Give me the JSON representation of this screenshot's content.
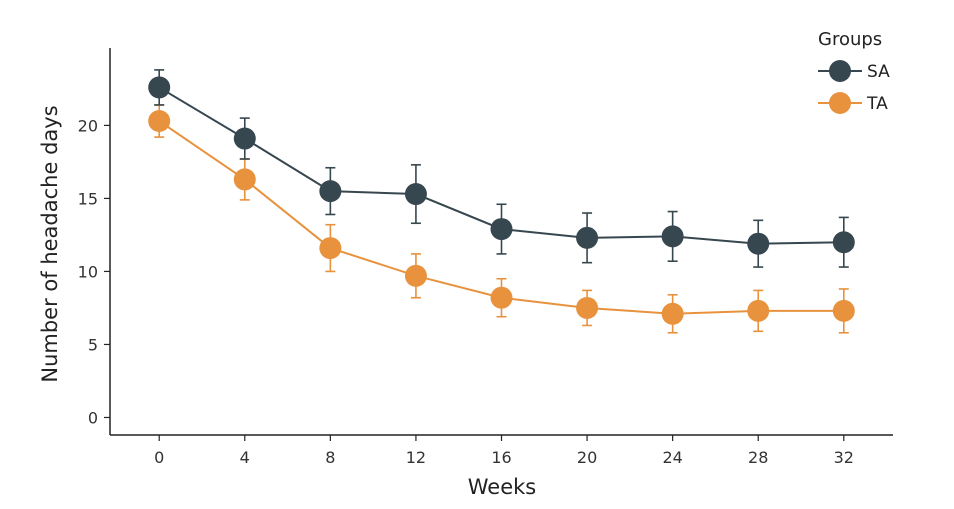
{
  "chart_data": {
    "type": "line",
    "xlabel": "Weeks",
    "ylabel": "Number of headache days",
    "x": [
      0,
      4,
      8,
      12,
      16,
      20,
      24,
      28,
      32
    ],
    "xlim": [
      -2.3,
      34.3
    ],
    "ylim": [
      -1.2,
      25.3
    ],
    "yticks": [
      0,
      5,
      10,
      15,
      20
    ],
    "grid": false,
    "legend": {
      "title": "Groups",
      "position": "top-right"
    },
    "series": [
      {
        "name": "SA",
        "color": "#37474f",
        "values": [
          22.6,
          19.1,
          15.5,
          15.3,
          12.9,
          12.3,
          12.4,
          11.9,
          12.0
        ],
        "error": [
          1.2,
          1.4,
          1.6,
          2.0,
          1.7,
          1.7,
          1.7,
          1.6,
          1.7
        ]
      },
      {
        "name": "TA",
        "color": "#e8923e",
        "values": [
          20.3,
          16.3,
          11.6,
          9.7,
          8.2,
          7.5,
          7.1,
          7.3,
          7.3
        ],
        "error": [
          1.1,
          1.4,
          1.6,
          1.5,
          1.3,
          1.2,
          1.3,
          1.4,
          1.5
        ]
      }
    ]
  }
}
